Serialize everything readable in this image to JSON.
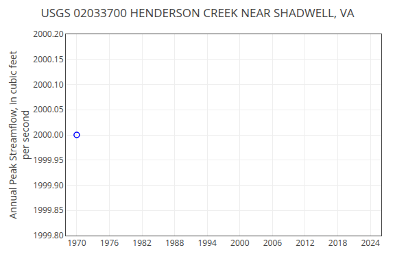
{
  "chart_data": {
    "type": "scatter",
    "title": "USGS 02033700 HENDERSON CREEK NEAR SHADWELL, VA",
    "ylabel": "Annual Peak Streamflow, in cubic feet\nper second",
    "x": [
      1970
    ],
    "values": [
      2000.0
    ],
    "color": "#0000ff",
    "marker": "circle-open",
    "xlim": [
      1968,
      2026
    ],
    "ylim": [
      1999.8,
      2000.2
    ],
    "xticks": [
      1970,
      1976,
      1982,
      1988,
      1994,
      2000,
      2006,
      2012,
      2018,
      2024
    ],
    "yticks": [
      {
        "value": 1999.8,
        "label": "1999.80"
      },
      1999.85,
      {
        "value": 1999.9,
        "label": "1999.90"
      },
      1999.95,
      {
        "value": 2000.0,
        "label": "2000.00"
      },
      2000.05,
      {
        "value": 2000.1,
        "label": "2000.10"
      },
      2000.15,
      {
        "value": 2000.2,
        "label": "2000.20"
      }
    ],
    "grid": true
  }
}
